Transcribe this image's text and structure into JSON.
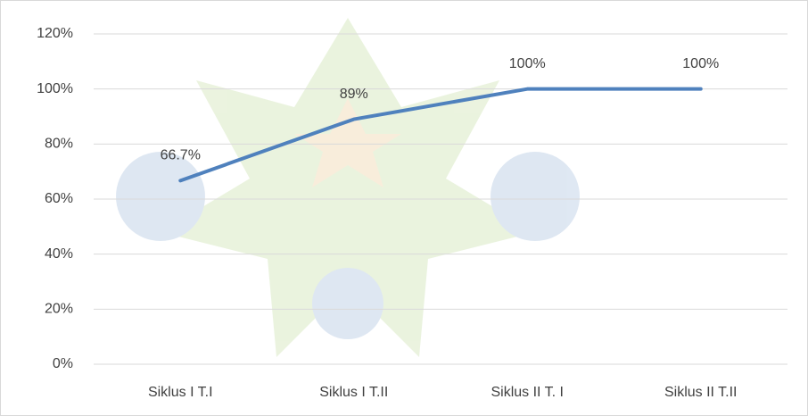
{
  "chart_data": {
    "type": "line",
    "categories": [
      "Siklus I T.I",
      "Siklus I T.II",
      "Siklus II T. I",
      "Siklus II T.II"
    ],
    "series": [
      {
        "color": "#4f81bd",
        "values": [
          66.7,
          89,
          100,
          100
        ],
        "value_labels": [
          "66.7%",
          "89%",
          "100%",
          "100%"
        ]
      }
    ],
    "ylim": [
      0,
      120
    ],
    "yticks": [
      {
        "value": 0,
        "label": "0%"
      },
      {
        "value": 20,
        "label": "20%"
      },
      {
        "value": 40,
        "label": "40%"
      },
      {
        "value": 60,
        "label": "60%"
      },
      {
        "value": 80,
        "label": "80%"
      },
      {
        "value": 100,
        "label": "100%"
      },
      {
        "value": 120,
        "label": "120%"
      }
    ],
    "grid": true
  }
}
